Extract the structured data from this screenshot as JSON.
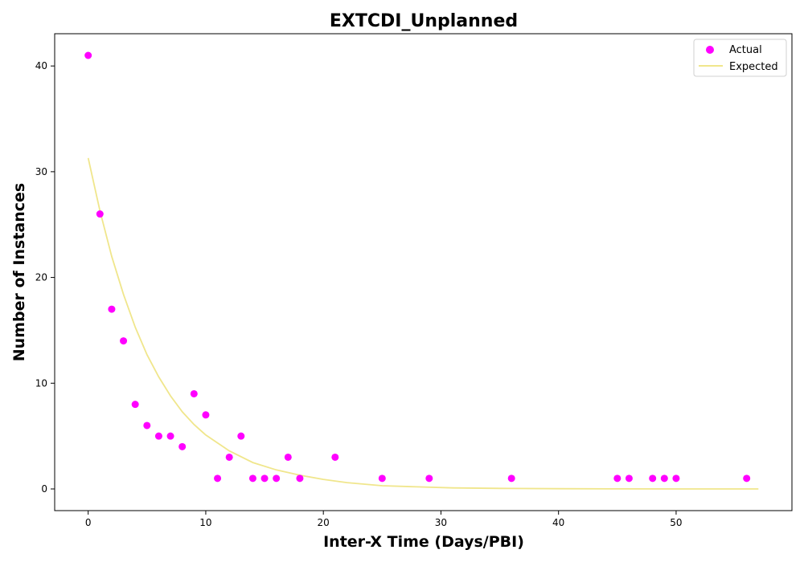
{
  "chart_data": {
    "type": "scatter",
    "title": "EXTCDI_Unplanned",
    "xlabel": "Inter-X Time (Days/PBI)",
    "ylabel": "Number of Instances",
    "xlim": [
      -2.85,
      59.85
    ],
    "ylim": [
      -2.05,
      43.05
    ],
    "xticks": [
      0,
      10,
      20,
      30,
      40,
      50
    ],
    "yticks": [
      0,
      10,
      20,
      30,
      40
    ],
    "grid": false,
    "legend_position": "top-right",
    "series": [
      {
        "name": "Actual",
        "kind": "scatter",
        "color": "#ff00ff",
        "x": [
          0,
          1,
          2,
          3,
          4,
          5,
          6,
          7,
          8,
          9,
          10,
          11,
          12,
          13,
          14,
          15,
          16,
          17,
          18,
          21,
          25,
          29,
          36,
          45,
          46,
          48,
          49,
          50,
          56
        ],
        "y": [
          41,
          26,
          17,
          14,
          8,
          6,
          5,
          5,
          4,
          9,
          7,
          1,
          3,
          5,
          1,
          1,
          1,
          3,
          1,
          3,
          1,
          1,
          1,
          1,
          1,
          1,
          1,
          1,
          1
        ]
      },
      {
        "name": "Expected",
        "kind": "line",
        "color": "#f0e68c",
        "x": [
          0,
          1,
          2,
          3,
          4,
          5,
          6,
          7,
          8,
          9,
          10,
          12,
          14,
          16,
          18,
          20,
          22,
          25,
          28,
          31,
          35,
          40,
          45,
          50,
          57
        ],
        "y": [
          31.3,
          26.3,
          22.0,
          18.4,
          15.3,
          12.7,
          10.6,
          8.8,
          7.3,
          6.1,
          5.1,
          3.6,
          2.5,
          1.8,
          1.3,
          0.9,
          0.6,
          0.3,
          0.2,
          0.1,
          0.05,
          0.02,
          0.01,
          0.0,
          0.0
        ]
      }
    ]
  }
}
